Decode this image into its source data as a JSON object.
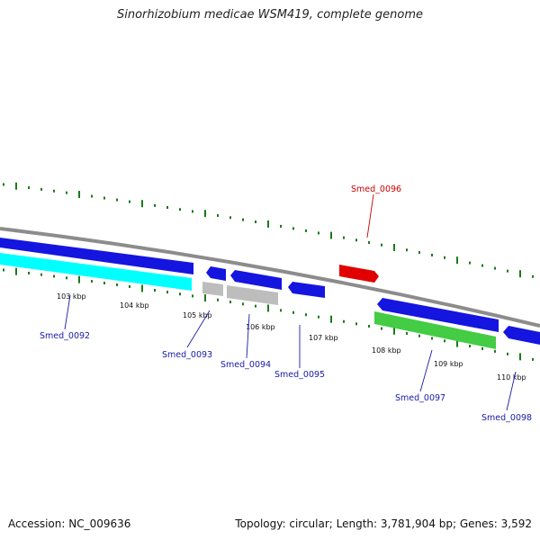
{
  "title": "Sinorhizobium medicae WSM419, complete genome",
  "footer": {
    "accession": "Accession: NC_009636",
    "summary": "Topology: circular; Length: 3,781,904 bp; Genes: 3,592"
  },
  "colors": {
    "backbone": "#8c8c8c",
    "tick": "#1a7a1a",
    "forward_gene": "#1515e0",
    "reverse_gene": "#1515e0",
    "highlight_gene": "#e00000",
    "cyan_feature": "#00ffff",
    "green_feature": "#44cc44",
    "gray_feature": "#bdbdbd",
    "label_blue": "#1a1aa8",
    "label_red": "#cc0000"
  },
  "tick_labels": [
    "103 kbp",
    "104 kbp",
    "105 kbp",
    "106 kbp",
    "107 kbp",
    "108 kbp",
    "109 kbp",
    "110 kbp"
  ],
  "gene_labels": [
    {
      "name": "Smed_0092",
      "color": "blue"
    },
    {
      "name": "Smed_0093",
      "color": "blue"
    },
    {
      "name": "Smed_0094",
      "color": "blue"
    },
    {
      "name": "Smed_0095",
      "color": "blue"
    },
    {
      "name": "Smed_0096",
      "color": "red"
    },
    {
      "name": "Smed_0097",
      "color": "blue"
    },
    {
      "name": "Smed_0098",
      "color": "blue"
    }
  ]
}
